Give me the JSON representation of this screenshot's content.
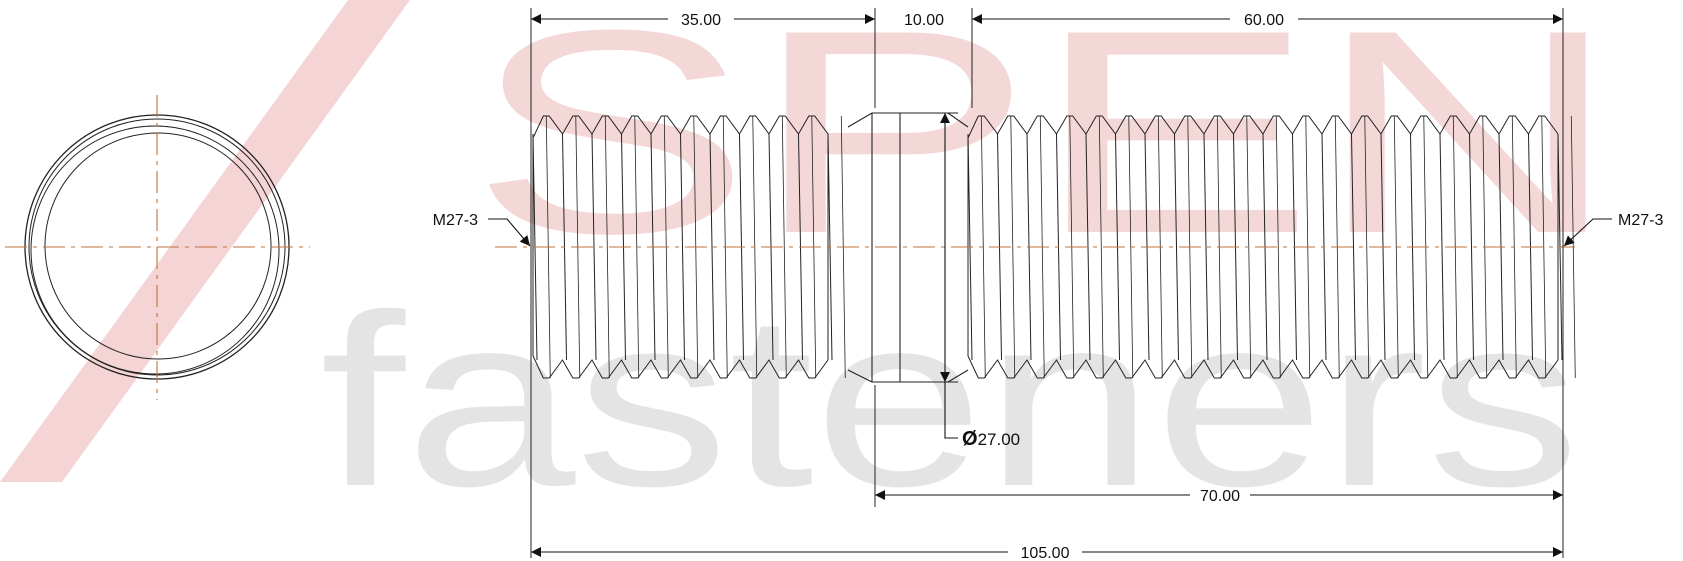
{
  "watermark": {
    "brand": "SPEN",
    "tagline": "fasteners",
    "colors": {
      "red": "#e6a0a0",
      "gray": "#d4d4d4"
    }
  },
  "colors": {
    "outline": "#222222",
    "centerline": "#c0703a",
    "dimension": "#111111"
  },
  "dimensions": {
    "left_thread_length": "35.00",
    "middle_length": "10.00",
    "right_thread_length": "60.00",
    "right_section_length": "70.00",
    "overall_length": "105.00",
    "diameter": "27.00",
    "diameter_symbol": "Ø"
  },
  "thread_callouts": {
    "left": "M27-3",
    "right": "M27-3"
  }
}
